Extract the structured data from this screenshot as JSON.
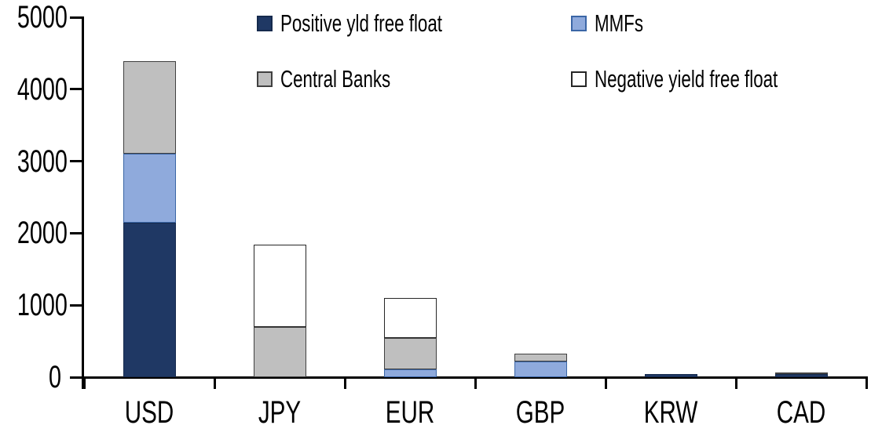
{
  "chart_data": {
    "type": "bar",
    "stacked": true,
    "title": "",
    "xlabel": "",
    "ylabel": "",
    "categories": [
      "USD",
      "JPY",
      "EUR",
      "GBP",
      "KRW",
      "CAD"
    ],
    "series": [
      {
        "name": "Positive yld free float",
        "fill": "#1F3864",
        "border": "#152A4D",
        "values": [
          2150,
          0,
          0,
          0,
          45,
          40
        ]
      },
      {
        "name": "MMFs",
        "fill": "#8FAADC",
        "border": "#3B66A6",
        "values": [
          950,
          0,
          110,
          220,
          0,
          0
        ]
      },
      {
        "name": "Central Banks",
        "fill": "#BFBFBF",
        "border": "#404040",
        "values": [
          1290,
          700,
          430,
          110,
          0,
          30
        ]
      },
      {
        "name": "Negative yield free float",
        "fill": "#FFFFFF",
        "border": "#262626",
        "values": [
          0,
          1140,
          560,
          0,
          0,
          0
        ]
      }
    ],
    "totals": [
      4390,
      1840,
      1100,
      330,
      45,
      70
    ],
    "ylim": [
      0,
      5000
    ],
    "yticks": [
      0,
      1000,
      2000,
      3000,
      4000,
      5000
    ],
    "grid": false,
    "legend_position": "top-two-column",
    "axis_color": "#000000",
    "background_color": "#FFFFFF"
  }
}
